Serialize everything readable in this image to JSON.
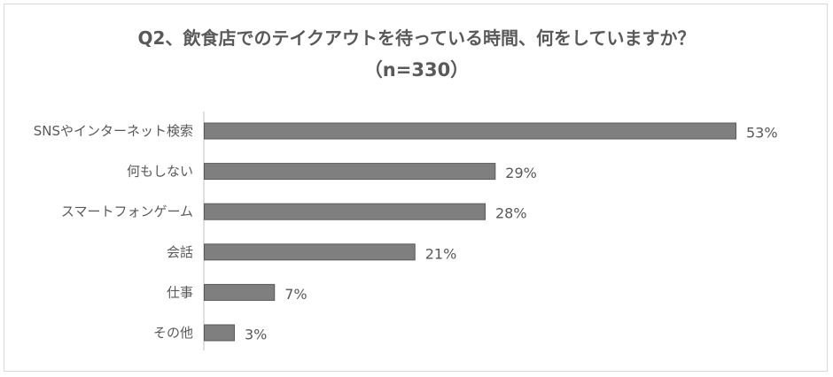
{
  "chart_data": {
    "type": "bar",
    "orientation": "horizontal",
    "title": "Q2、飲食店でのテイクアウトを待っている時間、何をしていますか？",
    "subtitle": "（n=330）",
    "categories": [
      "SNSやインターネット検索",
      "何もしない",
      "スマートフォンゲーム",
      "会話",
      "仕事",
      "その他"
    ],
    "values": [
      53,
      29,
      28,
      21,
      7,
      3
    ],
    "value_labels": [
      "53%",
      "29%",
      "28%",
      "21%",
      "7%",
      "3%"
    ],
    "unit": "%",
    "xlim": [
      0,
      53
    ],
    "grid": false,
    "legend": "none",
    "bar_color": "#7f7f7f",
    "bar_border_color": "#595959",
    "text_color": "#595959",
    "axis_color": "#bfbfbf"
  }
}
